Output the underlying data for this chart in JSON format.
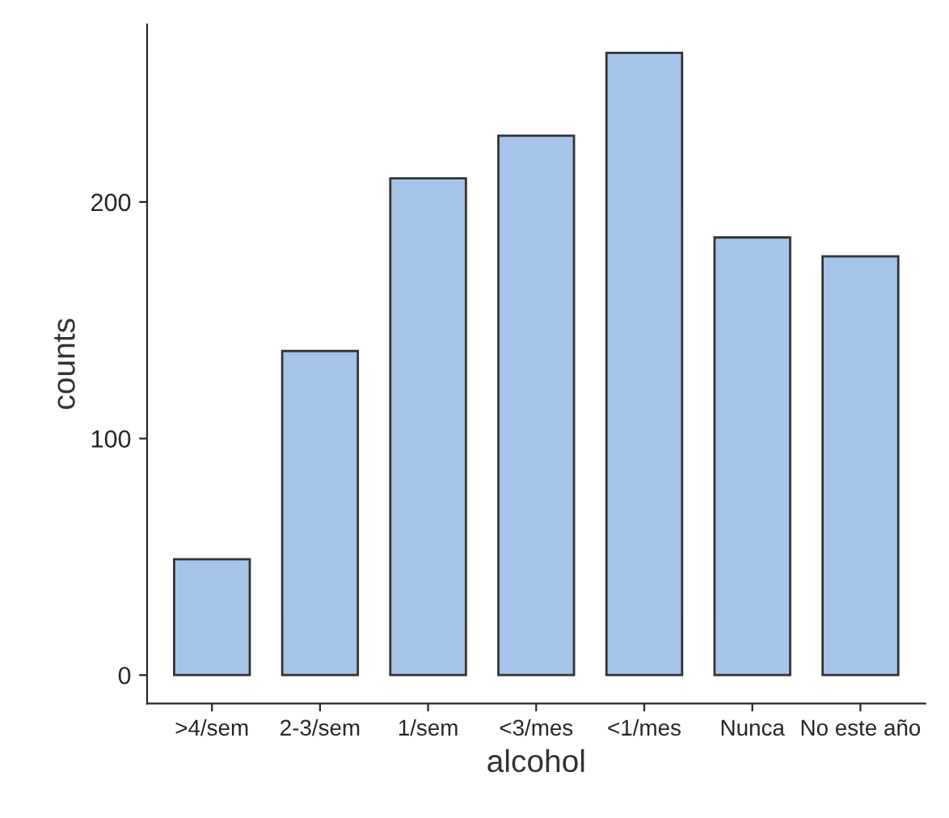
{
  "chart_data": {
    "type": "bar",
    "xlabel": "alcohol",
    "ylabel": "counts",
    "categories": [
      ">4/sem",
      "2-3/sem",
      "1/sem",
      "<3/mes",
      "<1/mes",
      "Nunca",
      "No este año"
    ],
    "values": [
      49,
      137,
      210,
      228,
      263,
      185,
      177
    ],
    "color": "#a6c4ea",
    "ylim": [
      -12,
      275
    ],
    "yticks": [
      0,
      100,
      200
    ],
    "grid": false,
    "legend": false
  }
}
